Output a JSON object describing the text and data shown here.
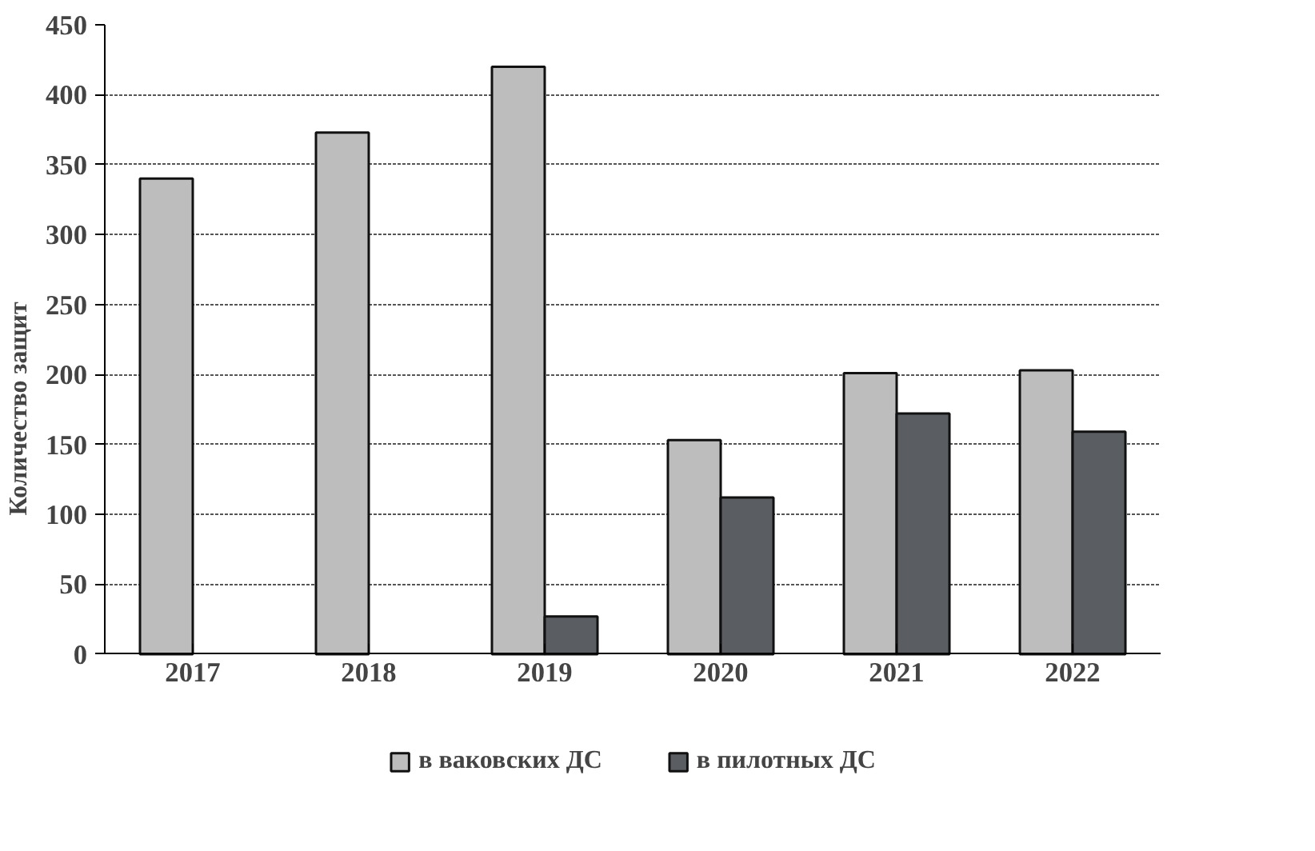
{
  "chart_data": {
    "type": "bar",
    "ylabel": "Количество защит",
    "categories": [
      "2017",
      "2018",
      "2019",
      "2020",
      "2021",
      "2022"
    ],
    "series": [
      {
        "name": "в ваковских ДС",
        "color": "#bdbdbd",
        "values": [
          340,
          373,
          420,
          153,
          201,
          203
        ]
      },
      {
        "name": "в пилотных ДС",
        "color": "#5a5e62",
        "values": [
          null,
          null,
          27,
          112,
          172,
          159
        ]
      }
    ],
    "ylim": [
      0,
      450
    ],
    "yticks": [
      0,
      50,
      100,
      150,
      200,
      250,
      300,
      350,
      400,
      450
    ],
    "grid": "y",
    "legend": "bottom"
  }
}
